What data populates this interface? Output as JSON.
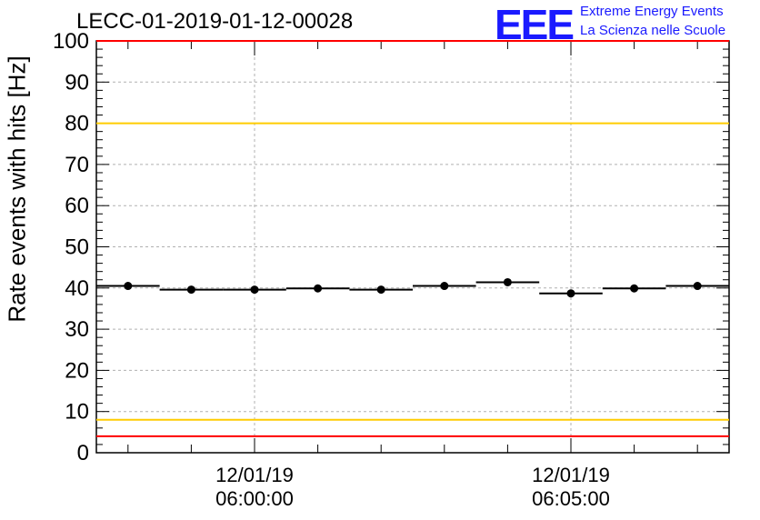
{
  "header": {
    "title": "LECC-01-2019-01-12-00028",
    "logo_text": "EEE",
    "logo_line1": "Extreme Energy Events",
    "logo_line2": "La Scienza nelle Scuole"
  },
  "colors": {
    "logo": "#1a1aff",
    "red_limit": "#ff0000",
    "yellow_limit": "#ffcc00",
    "grid": "#b0b0b0",
    "data": "#000000"
  },
  "chart_data": {
    "type": "scatter",
    "title": "LECC-01-2019-01-12-00028",
    "xlabel": "",
    "ylabel": "Rate events with hits [Hz]",
    "ylim": [
      0,
      100
    ],
    "yticks": [
      0,
      10,
      20,
      30,
      40,
      50,
      60,
      70,
      80,
      90,
      100
    ],
    "grid": true,
    "x_tick_labels": [
      {
        "date": "12/01/19",
        "time": "06:00:00"
      },
      {
        "date": "12/01/19",
        "time": "06:05:00"
      }
    ],
    "x_range": [
      "05:57:30",
      "06:07:30"
    ],
    "bin_width_s": 60,
    "series": [
      {
        "x": [
          "05:58:00",
          "05:59:00",
          "06:00:00",
          "06:01:00",
          "06:02:00",
          "06:03:00",
          "06:04:00",
          "06:05:00",
          "06:06:00",
          "06:07:00"
        ],
        "values": [
          40.5,
          39.6,
          39.6,
          39.9,
          39.6,
          40.5,
          41.4,
          38.7,
          39.9,
          40.5
        ]
      }
    ],
    "reference_lines": [
      {
        "value": 100,
        "color": "red"
      },
      {
        "value": 80,
        "color": "yellow"
      },
      {
        "value": 8,
        "color": "yellow"
      },
      {
        "value": 4,
        "color": "red"
      }
    ]
  }
}
